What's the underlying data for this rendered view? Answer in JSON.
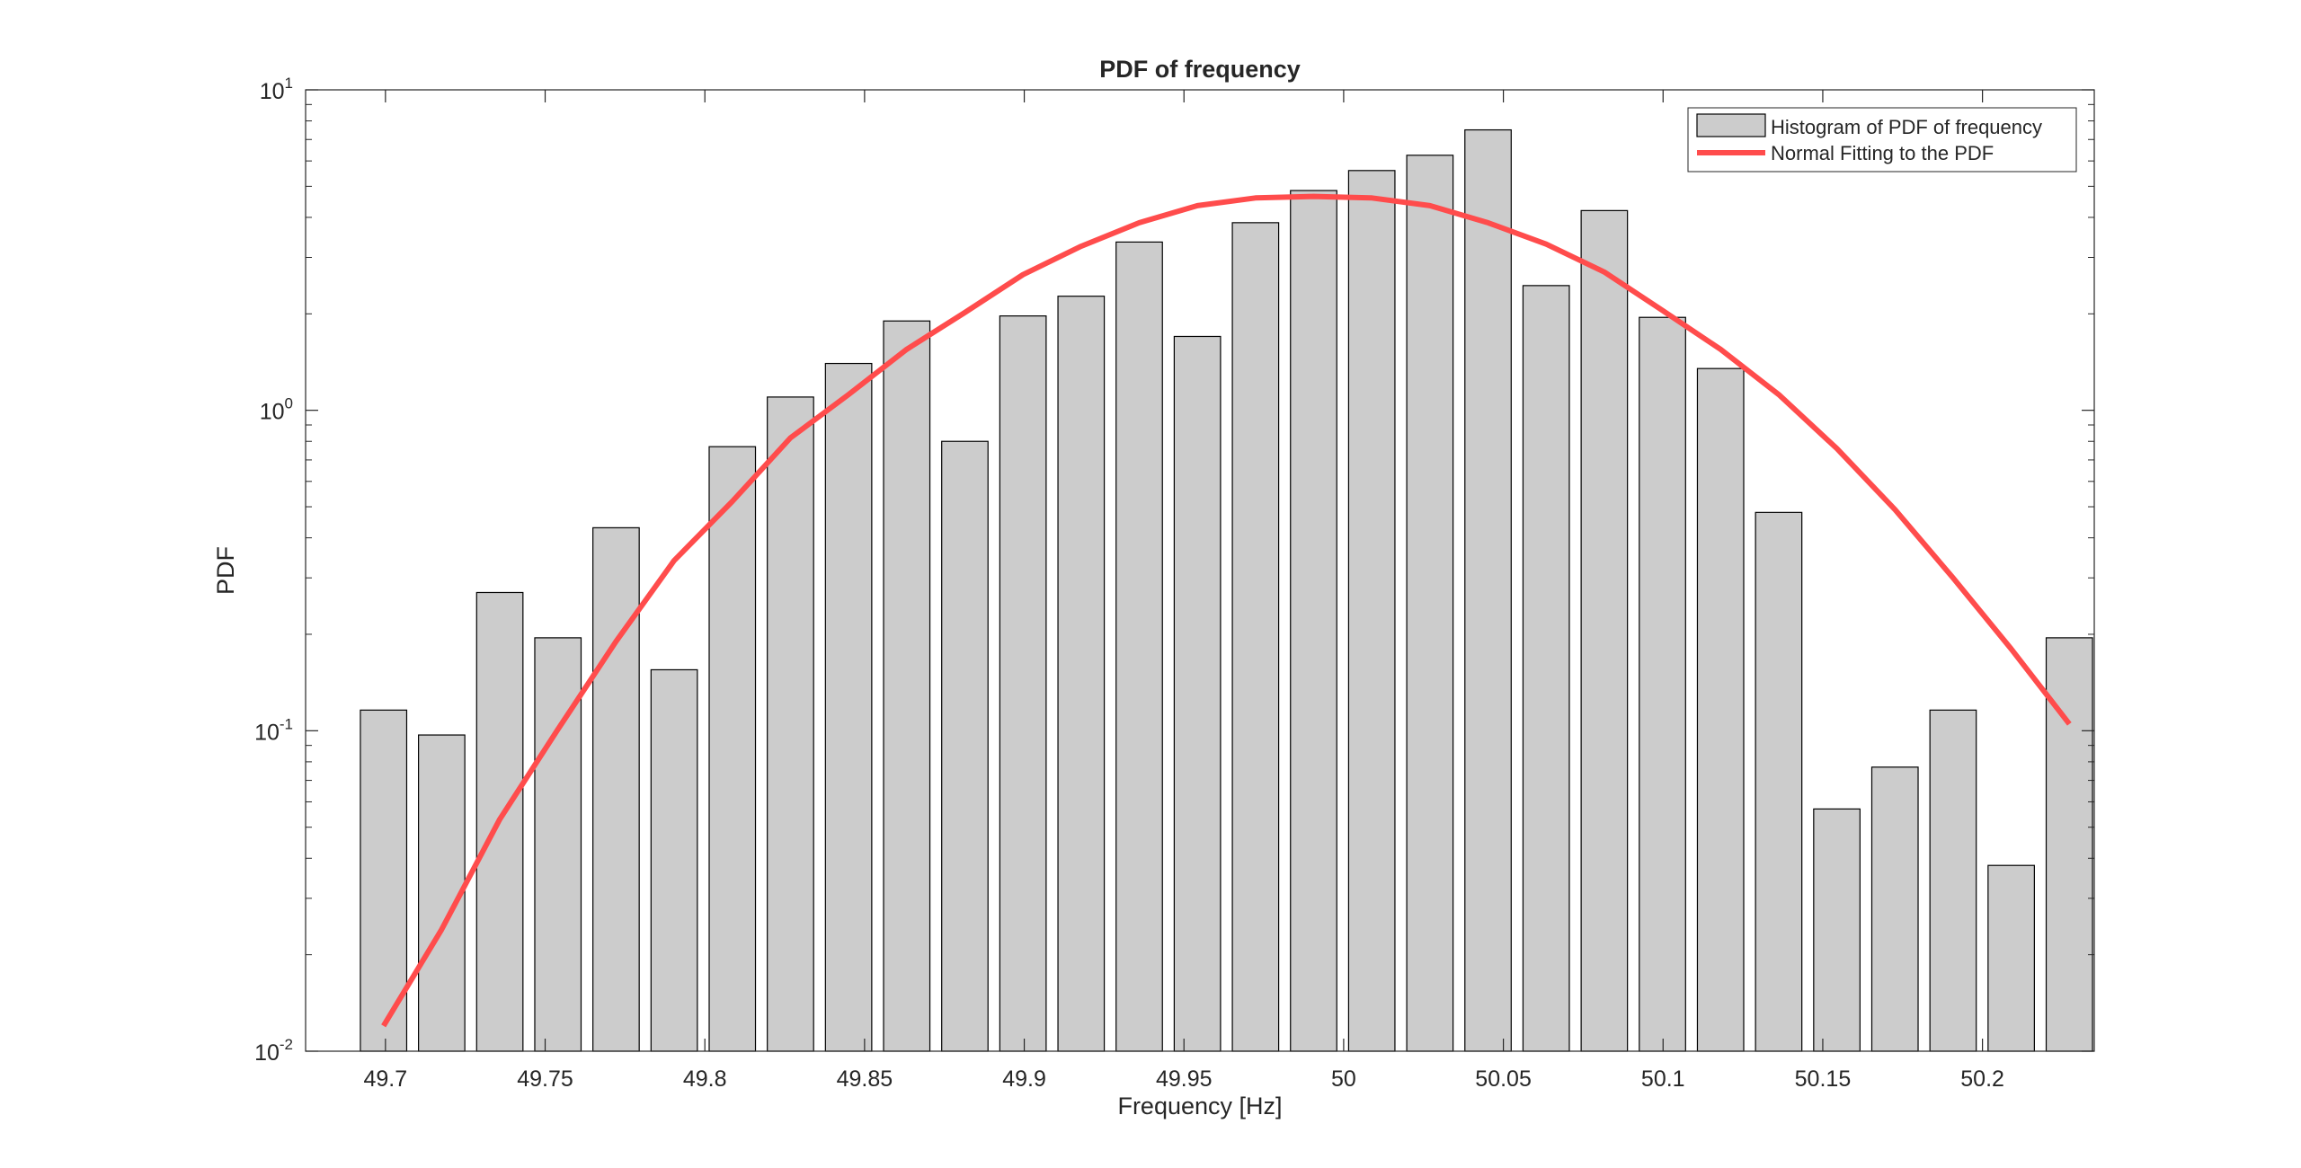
{
  "chart_data": {
    "type": "bar",
    "title": "PDF of frequency",
    "xlabel": "Frequency [Hz]",
    "ylabel": "PDF",
    "xlim": [
      49.675,
      50.235
    ],
    "ylim": [
      0.01,
      10
    ],
    "yscale": "log",
    "grid": false,
    "legend_position": "top-right",
    "x_ticks": [
      49.7,
      49.75,
      49.8,
      49.85,
      49.9,
      49.95,
      50,
      50.05,
      50.1,
      50.15,
      50.2
    ],
    "x_tick_labels": [
      "49.7",
      "49.75",
      "49.8",
      "49.85",
      "49.9",
      "49.95",
      "50",
      "50.05",
      "50.1",
      "50.15",
      "50.2"
    ],
    "y_ticks": [
      {
        "value": 0.01,
        "base": "10",
        "exp": "-2"
      },
      {
        "value": 0.1,
        "base": "10",
        "exp": "-1"
      },
      {
        "value": 1,
        "base": "10",
        "exp": "0"
      },
      {
        "value": 10,
        "base": "10",
        "exp": "1"
      }
    ],
    "series": [
      {
        "name": "Histogram of PDF of frequency",
        "kind": "bar",
        "color": "#cccccc",
        "edge_color": "#000000",
        "bar_width": 0.0145,
        "x": [
          49.6994,
          49.7176,
          49.7358,
          49.754,
          49.7722,
          49.7904,
          49.8086,
          49.8268,
          49.845,
          49.8632,
          49.8814,
          49.8996,
          49.9178,
          49.936,
          49.9542,
          49.9724,
          49.9906,
          50.0088,
          50.027,
          50.0452,
          50.0634,
          50.0816,
          50.0998,
          50.118,
          50.1362,
          50.1544,
          50.1726,
          50.1908,
          50.209,
          50.2272
        ],
        "values": [
          0.116,
          0.097,
          0.27,
          0.195,
          0.43,
          0.155,
          0.77,
          1.1,
          1.4,
          1.9,
          0.8,
          1.97,
          2.27,
          3.35,
          1.7,
          3.85,
          4.85,
          5.6,
          6.25,
          7.5,
          2.45,
          4.2,
          1.95,
          1.35,
          0.48,
          0.057,
          0.077,
          0.116,
          0.038,
          0.195
        ]
      },
      {
        "name": "Normal Fitting to the PDF",
        "kind": "line",
        "color": "#ff4c4c",
        "x": [
          49.6994,
          49.7176,
          49.7358,
          49.754,
          49.7722,
          49.7904,
          49.8086,
          49.8268,
          49.845,
          49.8632,
          49.8814,
          49.8996,
          49.9178,
          49.936,
          49.9542,
          49.9724,
          49.9906,
          50.0088,
          50.027,
          50.0452,
          50.0634,
          50.0816,
          50.0998,
          50.118,
          50.1362,
          50.1544,
          50.1726,
          50.1908,
          50.209,
          50.2272
        ],
        "values": [
          0.012,
          0.024,
          0.053,
          0.101,
          0.19,
          0.34,
          0.52,
          0.82,
          1.12,
          1.55,
          2.02,
          2.65,
          3.25,
          3.85,
          4.35,
          4.6,
          4.65,
          4.6,
          4.35,
          3.85,
          3.3,
          2.7,
          2.05,
          1.55,
          1.12,
          0.76,
          0.49,
          0.3,
          0.18,
          0.105
        ]
      }
    ]
  }
}
